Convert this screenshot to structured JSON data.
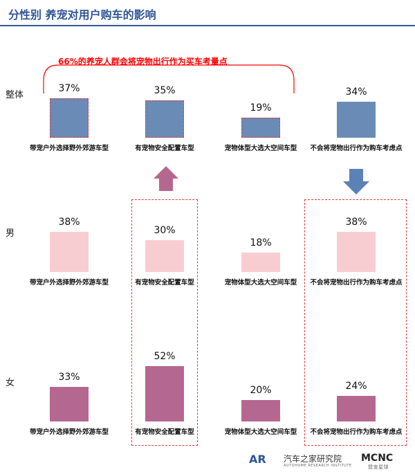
{
  "header": {
    "title": "分性别  养宠对用户购车的影响"
  },
  "callout": {
    "percent": "66%",
    "text": "的养宠人群会将宠物出行作为买车考量点"
  },
  "colors": {
    "overall": "#6a8bb5",
    "male": "#f8cdd2",
    "female": "#b5688f",
    "arrow_up": "#b5688f",
    "arrow_down": "#5b82b6",
    "highlight_red": "#e23a3a"
  },
  "chart_data": {
    "type": "bar",
    "categories": [
      "带宠户外选择野外郊游车型",
      "有宠物安全配置车型",
      "宠物体型大选大空间车型",
      "不会将宠物出行作为购车考虑点"
    ],
    "series": [
      {
        "name": "整体",
        "values": [
          37,
          35,
          19,
          34
        ],
        "labels": [
          "37%",
          "35%",
          "19%",
          "34%"
        ]
      },
      {
        "name": "男",
        "values": [
          38,
          30,
          18,
          38
        ],
        "labels": [
          "38%",
          "30%",
          "18%",
          "38%"
        ]
      },
      {
        "name": "女",
        "values": [
          33,
          52,
          20,
          24
        ],
        "labels": [
          "33%",
          "52%",
          "20%",
          "24%"
        ]
      }
    ]
  },
  "footer": {
    "brand": "汽车之家研究院",
    "brand_sub": "AUTOHOME RESEARCH INSTITUTE",
    "partner": "盟宠星球"
  }
}
